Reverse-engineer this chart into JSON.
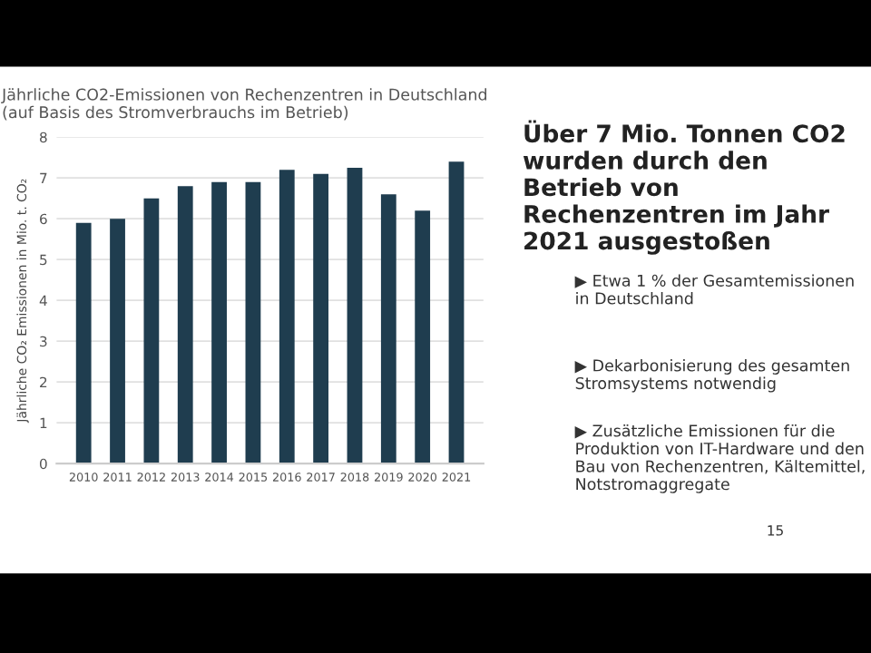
{
  "chart_data": {
    "type": "bar",
    "title": "Jährliche CO2-Emissionen von Rechenzentren in Deutschland (auf Basis des Stromverbrauchs im Betrieb)",
    "ylabel": "Jährliche CO₂ Emissionen in Mio. t. CO₂",
    "categories": [
      "2010",
      "2011",
      "2012",
      "2013",
      "2014",
      "2015",
      "2016",
      "2017",
      "2018",
      "2019",
      "2020",
      "2021"
    ],
    "values": [
      5.9,
      6.0,
      6.5,
      6.8,
      6.9,
      6.9,
      7.2,
      7.1,
      7.25,
      6.6,
      6.2,
      7.4
    ],
    "color": "#1f3d4f",
    "ylim": [
      0,
      8
    ],
    "yticks": [
      0,
      1,
      2,
      3,
      4,
      5,
      6,
      7,
      8
    ],
    "grid": "y",
    "annotations": [
      "Über 7 Mio. Tonnen CO2 wurden durch den Betrieb von Rechenzentren im Jahr 2021 ausgestoßen",
      "▶ Etwa 1 % der Gesamtemissionen in Deutschland",
      "▶ Dekarbonisierung des gesamten Stromsystems notwendig",
      "▶ Zusätzliche Emissionen für die Produktion von IT-Hardware und den Bau von Rechenzentren, Kältemittel, Notstromaggregate",
      "15"
    ]
  }
}
